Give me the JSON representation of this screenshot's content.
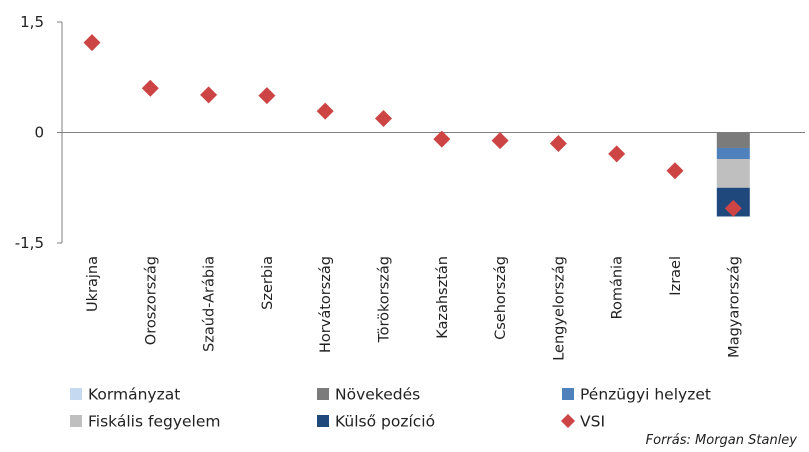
{
  "chart_data": {
    "type": "scatter",
    "categories": [
      "Ukrajna",
      "Oroszország",
      "Szaúd-Arábia",
      "Szerbia",
      "Horvátország",
      "Törökország",
      "Kazahsztán",
      "Csehország",
      "Lengyelország",
      "Románia",
      "Izrael",
      "Magyarország"
    ],
    "ylim": [
      -1.5,
      1.5
    ],
    "yticks": [
      1.5,
      0,
      -1.5
    ],
    "ytick_labels": [
      "1,5",
      "0",
      "-1,5"
    ],
    "series": [
      {
        "name": "VSI",
        "type": "scatter",
        "marker": "diamond",
        "color": "#cc4444",
        "values": [
          1.22,
          0.6,
          0.51,
          0.5,
          0.29,
          0.19,
          -0.09,
          -0.11,
          -0.15,
          -0.29,
          -0.52,
          -1.03
        ]
      }
    ],
    "stacked_components": {
      "category": "Magyarország",
      "segments": [
        {
          "name": "Növekedés",
          "value": -0.21,
          "color": "#7b7b7b"
        },
        {
          "name": "Pénzügyi helyzet",
          "value": -0.15,
          "color": "#4f81bd"
        },
        {
          "name": "Fiskális fegyelem",
          "value": -0.39,
          "color": "#bfbfbf"
        },
        {
          "name": "Külső pozíció",
          "value": -0.39,
          "color": "#1f497d"
        }
      ]
    },
    "legend": [
      {
        "name": "Kormányzat",
        "color": "#c5d9f1",
        "shape": "square"
      },
      {
        "name": "Növekedés",
        "color": "#7b7b7b",
        "shape": "square"
      },
      {
        "name": "Pénzügyi helyzet",
        "color": "#4f81bd",
        "shape": "square"
      },
      {
        "name": "Fiskális fegyelem",
        "color": "#bfbfbf",
        "shape": "square"
      },
      {
        "name": "Külső pozíció",
        "color": "#1f497d",
        "shape": "square"
      },
      {
        "name": "VSI",
        "color": "#cc4444",
        "shape": "diamond"
      }
    ],
    "legend_placement": "bottom",
    "grid": false,
    "source": "Forrás: Morgan Stanley"
  }
}
